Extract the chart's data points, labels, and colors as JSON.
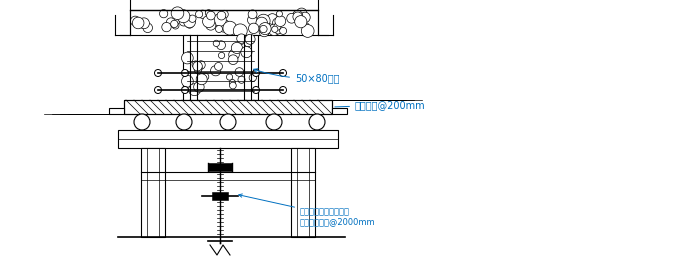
{
  "bg_color": "#ffffff",
  "line_color": "#000000",
  "annotation_color": "#0070c0",
  "fig_width": 6.83,
  "fig_height": 2.61,
  "dpi": 100,
  "label_50x80": "50×80木方",
  "label_beam": "梁底木板@200mm",
  "label_jack": "可调顶托，在梁底顺梁\n长方向设一排@2000mm"
}
